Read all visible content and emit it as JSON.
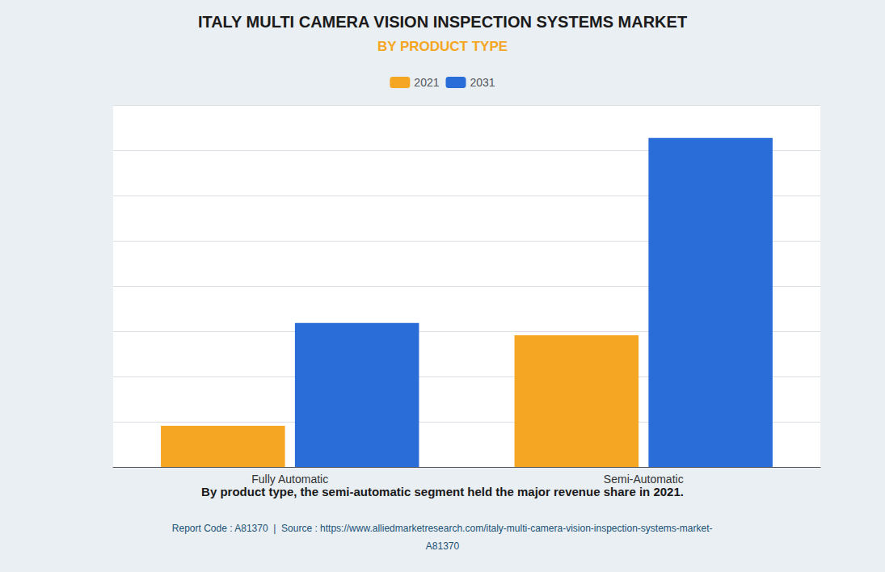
{
  "chart_data": {
    "type": "bar",
    "title": "ITALY MULTI CAMERA VISION INSPECTION SYSTEMS MARKET",
    "subtitle": "BY PRODUCT TYPE",
    "categories": [
      "Fully Automatic",
      "Semi-Automatic"
    ],
    "series": [
      {
        "name": "2021",
        "color": "#F5A623",
        "values": [
          1.0,
          3.2
        ]
      },
      {
        "name": "2031",
        "color": "#2A6DD9",
        "values": [
          3.5,
          8.0
        ]
      }
    ],
    "ylim": [
      0,
      8.8
    ],
    "yticks": [
      0,
      1.1,
      2.2,
      3.3,
      4.4,
      5.5,
      6.6,
      7.7,
      8.8
    ],
    "grid": true,
    "legend": "top",
    "tick_labels": "x",
    "annotations": [
      "By product type, the semi-automatic segment held the major revenue share in 2021.",
      "Report Code : A81370  |  Source : https://www.alliedmarketresearch.com/italy-multi-camera-vision-inspection-systems-market-",
      "A81370"
    ]
  }
}
